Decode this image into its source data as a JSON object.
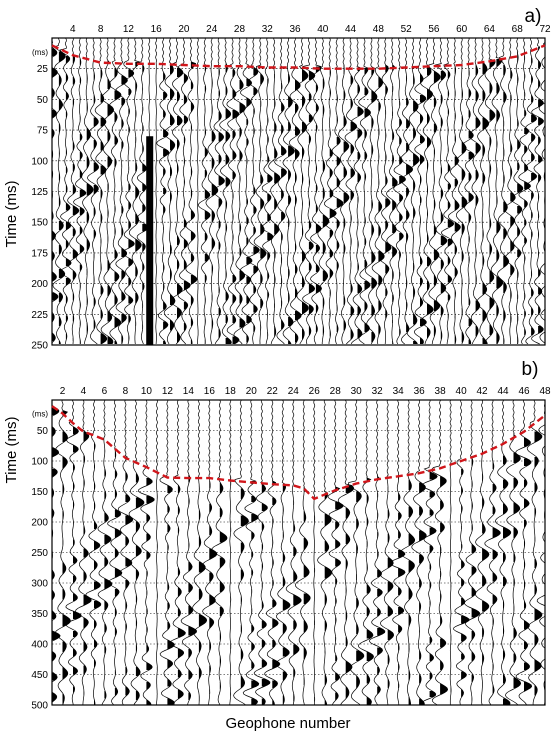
{
  "chart_data": [
    {
      "type": "seismic-trace",
      "panel_label": "a)",
      "ylabel": "Time (ms)",
      "y_unit_label": "(ms)",
      "xlim": [
        1,
        72
      ],
      "ylim": [
        0,
        250
      ],
      "x_tick_labels": [
        "4",
        "8",
        "12",
        "16",
        "20",
        "24",
        "28",
        "32",
        "36",
        "40",
        "44",
        "48",
        "52",
        "56",
        "60",
        "64",
        "68",
        "72"
      ],
      "y_tick_labels": [
        "25",
        "50",
        "75",
        "100",
        "125",
        "150",
        "175",
        "200",
        "225",
        "250"
      ],
      "first_break_color": "#d0161b",
      "first_break_x": [
        1,
        4,
        8,
        12,
        16,
        20,
        24,
        28,
        32,
        36,
        40,
        44,
        48,
        52,
        56,
        60,
        64,
        68,
        72
      ],
      "first_break_ms": [
        6,
        14,
        20,
        21,
        21,
        22,
        23,
        23,
        24,
        24,
        25,
        25,
        25,
        24,
        23,
        22,
        19,
        15,
        6
      ]
    },
    {
      "type": "seismic-trace",
      "panel_label": "b)",
      "ylabel": "Time (ms)",
      "y_unit_label": "(ms)",
      "xlim": [
        1,
        48
      ],
      "ylim": [
        0,
        500
      ],
      "x_tick_labels": [
        "2",
        "4",
        "6",
        "8",
        "10",
        "12",
        "14",
        "16",
        "18",
        "20",
        "22",
        "24",
        "26",
        "28",
        "30",
        "32",
        "34",
        "36",
        "38",
        "40",
        "42",
        "44",
        "46",
        "48"
      ],
      "y_tick_labels": [
        "50",
        "100",
        "150",
        "200",
        "250",
        "300",
        "350",
        "400",
        "450",
        "500"
      ],
      "first_break_color": "#d0161b",
      "first_break_x": [
        1,
        2,
        3,
        4,
        5,
        6,
        7,
        8,
        10,
        12,
        14,
        16,
        18,
        20,
        22,
        24,
        25,
        26,
        28,
        30,
        32,
        34,
        36,
        38,
        40,
        42,
        44,
        46,
        48
      ],
      "first_break_ms": [
        10,
        22,
        38,
        52,
        58,
        65,
        80,
        95,
        110,
        127,
        128,
        128,
        132,
        135,
        138,
        140,
        145,
        162,
        148,
        137,
        130,
        125,
        120,
        112,
        100,
        88,
        72,
        52,
        25
      ]
    }
  ],
  "xlabel": "Geophone number"
}
